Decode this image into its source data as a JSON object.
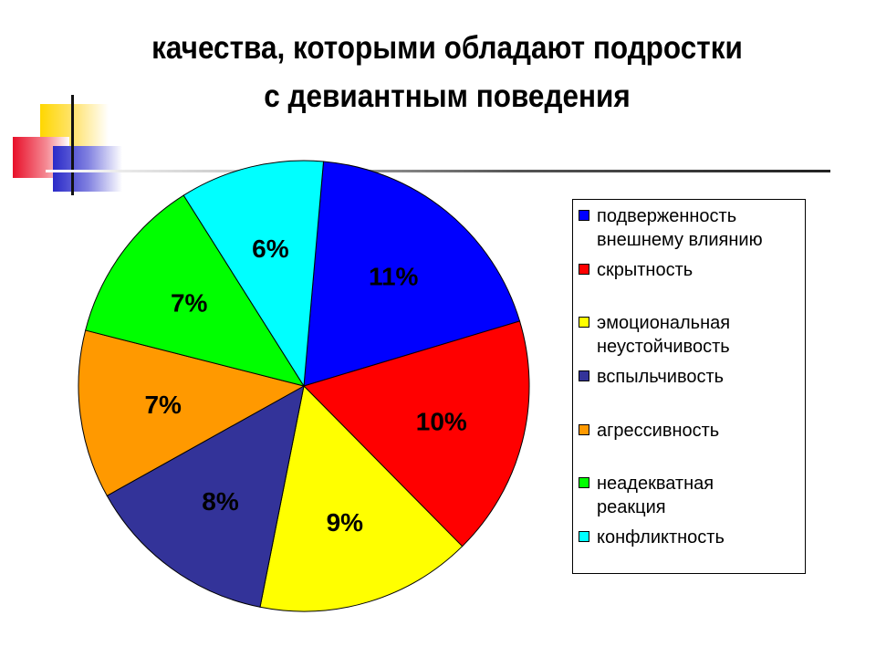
{
  "title": {
    "line1": "качества, которыми обладают подростки",
    "line2": "с девиантным поведения"
  },
  "chart_data": {
    "type": "pie",
    "slices": [
      {
        "name": "подверженность\nвнешнему влиянию",
        "value": 11,
        "label": "11%",
        "color": "#0000FF"
      },
      {
        "name": "скрытность",
        "value": 10,
        "label": "10%",
        "color": "#FF0000"
      },
      {
        "name": "эмоциональная\nнеустойчивость",
        "value": 9,
        "label": "9%",
        "color": "#FFFF00"
      },
      {
        "name": "вспыльчивость",
        "value": 8,
        "label": "8%",
        "color": "#333399"
      },
      {
        "name": "агрессивность",
        "value": 7,
        "label": "7%",
        "color": "#FF9900"
      },
      {
        "name": "неадекватная\nреакция",
        "value": 7,
        "label": "7%",
        "color": "#00FF00"
      },
      {
        "name": "конфликтность",
        "value": 6,
        "label": "6%",
        "color": "#00FFFF"
      }
    ],
    "legend_position": "right"
  }
}
